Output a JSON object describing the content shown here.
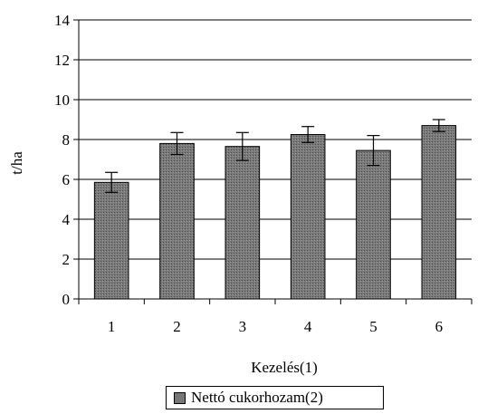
{
  "chart_data": {
    "type": "bar",
    "categories": [
      "1",
      "2",
      "3",
      "4",
      "5",
      "6"
    ],
    "series": [
      {
        "name": "Nettó cukorhozam(2)",
        "values": [
          5.85,
          7.8,
          7.65,
          8.25,
          7.45,
          8.7
        ],
        "error": [
          0.5,
          0.55,
          0.7,
          0.4,
          0.75,
          0.3
        ]
      }
    ],
    "xlabel": "Kezelés(1)",
    "ylabel": "t/ha",
    "ylim": [
      0,
      14
    ],
    "yticks": [
      "0",
      "2",
      "4",
      "6",
      "8",
      "10",
      "12",
      "14"
    ],
    "grid": true,
    "legend": "bottom",
    "bar_color": "#777777"
  }
}
